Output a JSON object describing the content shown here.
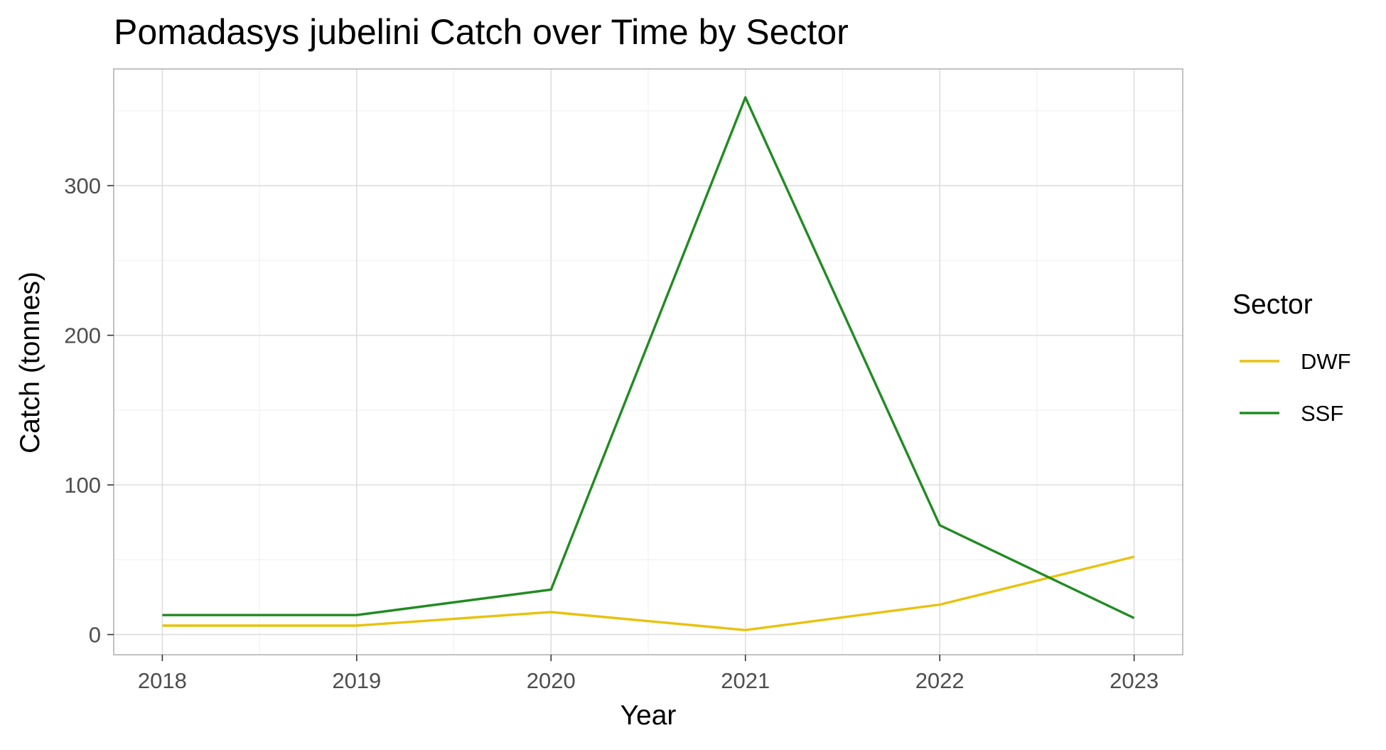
{
  "chart_data": {
    "type": "line",
    "title": "Pomadasys jubelini Catch over Time by Sector",
    "xlabel": "Year",
    "ylabel": "Catch (tonnes)",
    "x": [
      2018,
      2019,
      2020,
      2021,
      2022,
      2023
    ],
    "x_ticks": [
      "2018",
      "2019",
      "2020",
      "2021",
      "2022",
      "2023"
    ],
    "y_ticks": [
      "0",
      "100",
      "200",
      "300"
    ],
    "xlim": [
      2017.75,
      2023.25
    ],
    "ylim": [
      -13.5,
      378
    ],
    "grid": true,
    "legend": {
      "title": "Sector",
      "position": "right"
    },
    "series": [
      {
        "name": "DWF",
        "color": "#e8c20c",
        "values": [
          6,
          6,
          15,
          3,
          20,
          52
        ]
      },
      {
        "name": "SSF",
        "color": "#228b22",
        "values": [
          13,
          13,
          30,
          359,
          73,
          11
        ]
      }
    ]
  }
}
